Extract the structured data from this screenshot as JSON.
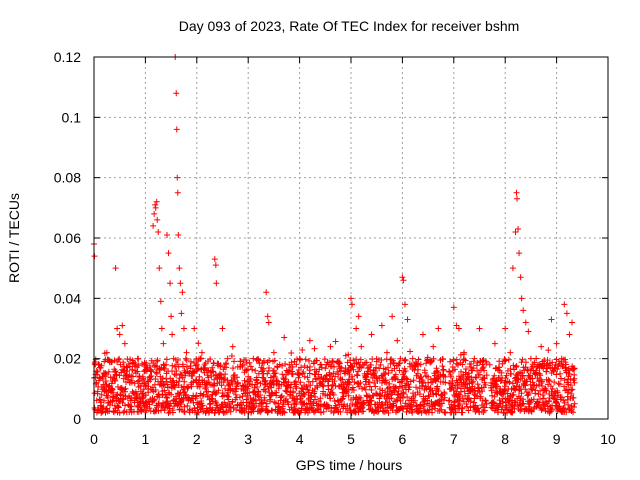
{
  "chart_data": {
    "type": "scatter",
    "title": "Day 093 of 2023, Rate Of TEC Index for receiver bshm",
    "xlabel": "GPS time / hours",
    "ylabel": "ROTI / TECUs",
    "xlim": [
      0,
      10
    ],
    "ylim": [
      0,
      0.12
    ],
    "x_ticks": [
      0,
      1,
      2,
      3,
      4,
      5,
      6,
      7,
      8,
      9,
      10
    ],
    "x_tick_labels": [
      "0",
      "1",
      "2",
      "3",
      "4",
      "5",
      "6",
      "7",
      "8",
      "9",
      "10"
    ],
    "y_ticks": [
      0,
      0.02,
      0.04,
      0.06,
      0.08,
      0.1,
      0.12
    ],
    "y_tick_labels": [
      "0",
      "0.02",
      "0.04",
      "0.06",
      "0.08",
      "0.1",
      "0.12"
    ],
    "grid": true,
    "marker": "plus",
    "marker_color": "#ff0000",
    "series": [
      {
        "name": "ROTI",
        "points": [
          [
            0.0,
            0.058
          ],
          [
            0.01,
            0.054
          ],
          [
            0.05,
            0.012
          ],
          [
            0.1,
            0.018
          ],
          [
            0.15,
            0.008
          ],
          [
            0.2,
            0.015
          ],
          [
            0.25,
            0.022
          ],
          [
            0.3,
            0.011
          ],
          [
            0.35,
            0.019
          ],
          [
            0.4,
            0.013
          ],
          [
            0.42,
            0.05
          ],
          [
            0.45,
            0.03
          ],
          [
            0.5,
            0.028
          ],
          [
            0.55,
            0.031
          ],
          [
            0.6,
            0.025
          ],
          [
            0.65,
            0.017
          ],
          [
            0.7,
            0.012
          ],
          [
            0.75,
            0.009
          ],
          [
            0.8,
            0.016
          ],
          [
            0.85,
            0.02
          ],
          [
            0.9,
            0.011
          ],
          [
            0.95,
            0.014
          ],
          [
            1.0,
            0.018
          ],
          [
            1.05,
            0.01
          ],
          [
            1.1,
            0.013
          ],
          [
            1.15,
            0.064
          ],
          [
            1.17,
            0.068
          ],
          [
            1.19,
            0.071
          ],
          [
            1.2,
            0.07
          ],
          [
            1.22,
            0.072
          ],
          [
            1.23,
            0.066
          ],
          [
            1.25,
            0.062
          ],
          [
            1.27,
            0.05
          ],
          [
            1.3,
            0.039
          ],
          [
            1.32,
            0.03
          ],
          [
            1.35,
            0.025
          ],
          [
            1.4,
            0.018
          ],
          [
            1.42,
            0.061
          ],
          [
            1.45,
            0.055
          ],
          [
            1.48,
            0.045
          ],
          [
            1.5,
            0.034
          ],
          [
            1.52,
            0.028
          ],
          [
            1.55,
            0.02
          ],
          [
            1.58,
            0.12
          ],
          [
            1.6,
            0.108
          ],
          [
            1.61,
            0.096
          ],
          [
            1.62,
            0.08
          ],
          [
            1.63,
            0.075
          ],
          [
            1.64,
            0.061
          ],
          [
            1.66,
            0.05
          ],
          [
            1.68,
            0.045
          ],
          [
            1.7,
            0.035
          ],
          [
            1.72,
            0.042
          ],
          [
            1.75,
            0.03
          ],
          [
            1.8,
            0.022
          ],
          [
            1.85,
            0.015
          ],
          [
            1.9,
            0.012
          ],
          [
            1.95,
            0.03
          ],
          [
            2.0,
            0.018
          ],
          [
            2.05,
            0.014
          ],
          [
            2.1,
            0.022
          ],
          [
            2.2,
            0.012
          ],
          [
            2.3,
            0.017
          ],
          [
            2.35,
            0.053
          ],
          [
            2.37,
            0.051
          ],
          [
            2.38,
            0.045
          ],
          [
            2.45,
            0.015
          ],
          [
            2.5,
            0.03
          ],
          [
            2.55,
            0.01
          ],
          [
            2.6,
            0.02
          ],
          [
            2.7,
            0.024
          ],
          [
            2.8,
            0.012
          ],
          [
            2.9,
            0.018
          ],
          [
            3.0,
            0.014
          ],
          [
            3.1,
            0.02
          ],
          [
            3.2,
            0.009
          ],
          [
            3.3,
            0.015
          ],
          [
            3.35,
            0.042
          ],
          [
            3.38,
            0.034
          ],
          [
            3.4,
            0.032
          ],
          [
            3.5,
            0.022
          ],
          [
            3.6,
            0.011
          ],
          [
            3.7,
            0.027
          ],
          [
            3.8,
            0.018
          ],
          [
            3.9,
            0.012
          ],
          [
            4.0,
            0.02
          ],
          [
            4.1,
            0.014
          ],
          [
            4.2,
            0.026
          ],
          [
            4.3,
            0.01
          ],
          [
            4.4,
            0.018
          ],
          [
            4.5,
            0.013
          ],
          [
            4.6,
            0.024
          ],
          [
            4.7,
            0.011
          ],
          [
            4.8,
            0.016
          ],
          [
            4.9,
            0.021
          ],
          [
            5.0,
            0.04
          ],
          [
            5.02,
            0.038
          ],
          [
            5.1,
            0.03
          ],
          [
            5.15,
            0.034
          ],
          [
            5.2,
            0.024
          ],
          [
            5.3,
            0.014
          ],
          [
            5.4,
            0.028
          ],
          [
            5.5,
            0.019
          ],
          [
            5.6,
            0.031
          ],
          [
            5.7,
            0.022
          ],
          [
            5.8,
            0.034
          ],
          [
            5.9,
            0.026
          ],
          [
            6.0,
            0.047
          ],
          [
            6.02,
            0.046
          ],
          [
            6.05,
            0.038
          ],
          [
            6.1,
            0.033
          ],
          [
            6.2,
            0.02
          ],
          [
            6.3,
            0.015
          ],
          [
            6.4,
            0.028
          ],
          [
            6.5,
            0.012
          ],
          [
            6.6,
            0.024
          ],
          [
            6.7,
            0.03
          ],
          [
            6.8,
            0.016
          ],
          [
            6.95,
            0.01
          ],
          [
            7.0,
            0.037
          ],
          [
            7.05,
            0.031
          ],
          [
            7.1,
            0.03
          ],
          [
            7.2,
            0.022
          ],
          [
            7.3,
            0.014
          ],
          [
            7.4,
            0.02
          ],
          [
            7.5,
            0.03
          ],
          [
            7.6,
            0.012
          ],
          [
            7.7,
            0.018
          ],
          [
            7.8,
            0.025
          ],
          [
            7.9,
            0.01
          ],
          [
            8.0,
            0.03
          ],
          [
            8.1,
            0.022
          ],
          [
            8.15,
            0.05
          ],
          [
            8.2,
            0.062
          ],
          [
            8.22,
            0.075
          ],
          [
            8.23,
            0.073
          ],
          [
            8.25,
            0.063
          ],
          [
            8.27,
            0.055
          ],
          [
            8.3,
            0.047
          ],
          [
            8.32,
            0.04
          ],
          [
            8.35,
            0.036
          ],
          [
            8.4,
            0.032
          ],
          [
            8.45,
            0.029
          ],
          [
            8.5,
            0.02
          ],
          [
            8.6,
            0.016
          ],
          [
            8.7,
            0.024
          ],
          [
            8.8,
            0.018
          ],
          [
            8.9,
            0.033
          ],
          [
            9.0,
            0.025
          ],
          [
            9.1,
            0.02
          ],
          [
            9.15,
            0.038
          ],
          [
            9.2,
            0.035
          ],
          [
            9.25,
            0.028
          ],
          [
            9.3,
            0.032
          ],
          [
            9.35,
            0.012
          ]
        ]
      }
    ],
    "dense_band": {
      "x_start": 0.0,
      "x_end": 9.35,
      "gaps": [
        [
          2.8,
          2.82
        ],
        [
          4.7,
          4.72
        ],
        [
          6.84,
          6.9
        ],
        [
          7.64,
          7.72
        ]
      ],
      "typical_low": 0.002,
      "typical_high": 0.02,
      "note": "Dense background of ROTI values mostly between 0.002 and 0.02 TECUs across the day"
    }
  }
}
